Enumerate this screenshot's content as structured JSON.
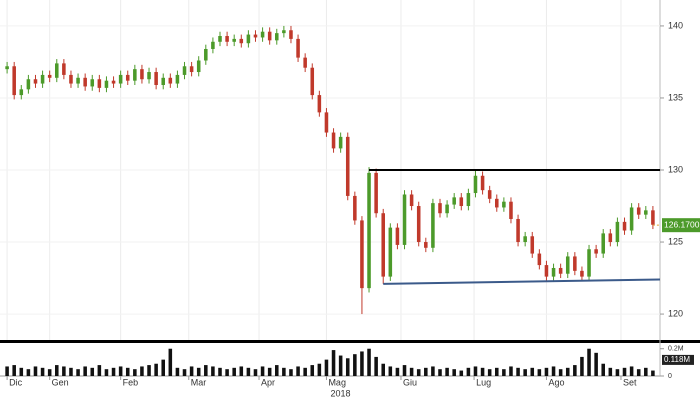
{
  "chart_data": {
    "type": "candlestick",
    "up_color": "#4c9a2a",
    "down_color": "#c0392b",
    "volume_color": "#111111",
    "grid": true,
    "xlim": [
      -1,
      92
    ],
    "ylim": [
      118.2,
      141.8
    ],
    "yticks": [
      120,
      125,
      130,
      135,
      140
    ],
    "xticks": [
      {
        "value": 0,
        "label": "Dic"
      },
      {
        "value": 6,
        "label": "Gen"
      },
      {
        "value": 16,
        "label": "Feb"
      },
      {
        "value": 25.6,
        "label": "Mar"
      },
      {
        "value": 35.5,
        "label": "Apr"
      },
      {
        "value": 45,
        "label": "Mag"
      },
      {
        "value": 55.5,
        "label": "Giu"
      },
      {
        "value": 65.8,
        "label": "Lug"
      },
      {
        "value": 76,
        "label": "Ago"
      },
      {
        "value": 86.5,
        "label": "Set"
      }
    ],
    "year_label": {
      "value": 45,
      "label": "2018"
    },
    "last_price": {
      "value": 126.17,
      "label": "126.1700"
    },
    "vlim": [
      0,
      0.22
    ],
    "vticks": [
      {
        "value": 0.2,
        "label": "0.2M"
      },
      0
    ],
    "volume_average": {
      "value": 0.118,
      "label": "0.118M"
    },
    "trend_lines": [
      {
        "color": "#000000",
        "points": [
          [
            51,
            130
          ],
          [
            92,
            130
          ]
        ]
      },
      {
        "color": "#3b5a8a",
        "points": [
          [
            53,
            122.1
          ],
          [
            92,
            122.4
          ]
        ]
      }
    ],
    "ohlc": [
      [
        137.0,
        137.5,
        136.7,
        137.2
      ],
      [
        137.2,
        137.5,
        134.9,
        135.2
      ],
      [
        135.2,
        135.9,
        134.9,
        135.6
      ],
      [
        135.6,
        136.6,
        135.3,
        136.3
      ],
      [
        136.3,
        136.6,
        135.7,
        136.0
      ],
      [
        136.0,
        136.9,
        135.7,
        136.6
      ],
      [
        136.6,
        136.9,
        136.1,
        136.4
      ],
      [
        136.4,
        137.7,
        136.1,
        137.4
      ],
      [
        137.4,
        137.7,
        136.3,
        136.6
      ],
      [
        136.6,
        136.9,
        135.7,
        136.0
      ],
      [
        136.0,
        136.7,
        135.7,
        136.4
      ],
      [
        136.4,
        136.7,
        135.5,
        135.8
      ],
      [
        135.8,
        136.6,
        135.5,
        136.3
      ],
      [
        136.3,
        136.6,
        135.4,
        135.7
      ],
      [
        135.7,
        136.5,
        135.4,
        136.2
      ],
      [
        136.2,
        136.5,
        135.7,
        136.0
      ],
      [
        136.0,
        136.9,
        135.7,
        136.6
      ],
      [
        136.6,
        136.9,
        135.9,
        136.2
      ],
      [
        136.2,
        137.3,
        135.9,
        137.0
      ],
      [
        137.0,
        137.3,
        136.0,
        136.3
      ],
      [
        136.3,
        137.1,
        136.0,
        136.8
      ],
      [
        136.8,
        137.1,
        135.6,
        135.9
      ],
      [
        135.9,
        136.7,
        135.6,
        136.4
      ],
      [
        136.4,
        136.7,
        135.7,
        136.0
      ],
      [
        136.0,
        136.9,
        135.7,
        136.6
      ],
      [
        136.6,
        137.5,
        136.3,
        137.2
      ],
      [
        137.2,
        137.5,
        136.5,
        136.8
      ],
      [
        136.8,
        137.9,
        136.5,
        137.6
      ],
      [
        137.6,
        138.7,
        137.3,
        138.4
      ],
      [
        138.4,
        139.2,
        138.1,
        138.9
      ],
      [
        138.9,
        139.6,
        138.6,
        139.3
      ],
      [
        139.3,
        139.6,
        138.6,
        138.9
      ],
      [
        138.9,
        139.4,
        138.6,
        139.1
      ],
      [
        139.1,
        139.4,
        138.5,
        138.8
      ],
      [
        138.8,
        139.7,
        138.5,
        139.4
      ],
      [
        139.4,
        139.7,
        138.9,
        139.2
      ],
      [
        139.2,
        139.9,
        138.9,
        139.6
      ],
      [
        139.6,
        139.9,
        138.7,
        139.0
      ],
      [
        139.0,
        139.8,
        138.7,
        139.5
      ],
      [
        139.5,
        140.0,
        139.2,
        139.7
      ],
      [
        139.7,
        140.0,
        138.8,
        139.1
      ],
      [
        139.1,
        139.4,
        137.5,
        137.8
      ],
      [
        137.8,
        138.1,
        136.8,
        137.1
      ],
      [
        137.1,
        137.4,
        134.9,
        135.2
      ],
      [
        135.2,
        135.5,
        133.7,
        134.0
      ],
      [
        134.0,
        134.3,
        132.3,
        132.6
      ],
      [
        132.6,
        132.9,
        131.2,
        131.5
      ],
      [
        131.5,
        132.6,
        131.2,
        132.3
      ],
      [
        132.3,
        132.6,
        127.9,
        128.2
      ],
      [
        128.2,
        128.5,
        126.2,
        126.5
      ],
      [
        126.5,
        126.8,
        120.0,
        121.8
      ],
      [
        121.8,
        130.2,
        121.5,
        129.8
      ],
      [
        129.8,
        130.1,
        126.7,
        127.0
      ],
      [
        127.0,
        127.3,
        122.1,
        122.6
      ],
      [
        122.6,
        126.3,
        122.3,
        126.0
      ],
      [
        126.0,
        126.3,
        124.5,
        124.8
      ],
      [
        124.8,
        128.6,
        124.5,
        128.3
      ],
      [
        128.3,
        128.6,
        127.2,
        127.5
      ],
      [
        127.5,
        127.8,
        124.7,
        125.0
      ],
      [
        125.0,
        125.3,
        124.3,
        124.6
      ],
      [
        124.6,
        128.0,
        124.3,
        127.7
      ],
      [
        127.7,
        128.0,
        126.7,
        127.0
      ],
      [
        127.0,
        127.9,
        126.7,
        127.6
      ],
      [
        127.6,
        128.4,
        127.3,
        128.1
      ],
      [
        128.1,
        128.4,
        127.2,
        127.5
      ],
      [
        127.5,
        128.7,
        127.2,
        128.4
      ],
      [
        128.4,
        130.0,
        128.1,
        129.6
      ],
      [
        129.6,
        129.9,
        128.3,
        128.6
      ],
      [
        128.6,
        128.9,
        127.7,
        128.0
      ],
      [
        128.0,
        128.3,
        127.1,
        127.4
      ],
      [
        127.4,
        128.1,
        127.1,
        127.8
      ],
      [
        127.8,
        128.1,
        126.3,
        126.6
      ],
      [
        126.6,
        126.9,
        124.7,
        125.0
      ],
      [
        125.0,
        125.7,
        124.7,
        125.4
      ],
      [
        125.4,
        125.7,
        123.9,
        124.2
      ],
      [
        124.2,
        124.5,
        123.1,
        123.4
      ],
      [
        123.4,
        123.7,
        122.3,
        122.6
      ],
      [
        122.6,
        123.5,
        122.3,
        123.2
      ],
      [
        123.2,
        123.5,
        122.5,
        122.8
      ],
      [
        122.8,
        124.3,
        122.5,
        124.0
      ],
      [
        124.0,
        124.3,
        122.7,
        123.0
      ],
      [
        123.0,
        123.3,
        122.3,
        122.6
      ],
      [
        122.6,
        124.8,
        122.3,
        124.5
      ],
      [
        124.5,
        124.8,
        123.9,
        124.2
      ],
      [
        124.2,
        125.9,
        123.9,
        125.6
      ],
      [
        125.6,
        125.9,
        124.7,
        125.0
      ],
      [
        125.0,
        126.7,
        124.7,
        126.4
      ],
      [
        126.4,
        126.7,
        125.5,
        125.8
      ],
      [
        125.8,
        127.7,
        125.5,
        127.4
      ],
      [
        127.4,
        127.7,
        126.6,
        126.9
      ],
      [
        126.9,
        127.5,
        126.6,
        127.2
      ],
      [
        127.2,
        127.5,
        125.9,
        126.2
      ]
    ],
    "volume": [
      0.07,
      0.08,
      0.06,
      0.05,
      0.07,
      0.06,
      0.05,
      0.08,
      0.07,
      0.06,
      0.05,
      0.07,
      0.06,
      0.08,
      0.05,
      0.06,
      0.07,
      0.06,
      0.05,
      0.07,
      0.08,
      0.09,
      0.12,
      0.2,
      0.06,
      0.05,
      0.07,
      0.06,
      0.08,
      0.07,
      0.06,
      0.05,
      0.06,
      0.07,
      0.06,
      0.05,
      0.07,
      0.06,
      0.08,
      0.06,
      0.05,
      0.07,
      0.06,
      0.08,
      0.09,
      0.12,
      0.19,
      0.15,
      0.13,
      0.16,
      0.18,
      0.2,
      0.14,
      0.09,
      0.07,
      0.06,
      0.08,
      0.06,
      0.05,
      0.06,
      0.07,
      0.05,
      0.06,
      0.05,
      0.04,
      0.06,
      0.07,
      0.06,
      0.05,
      0.06,
      0.05,
      0.07,
      0.06,
      0.05,
      0.06,
      0.05,
      0.06,
      0.07,
      0.05,
      0.06,
      0.08,
      0.14,
      0.2,
      0.17,
      0.09,
      0.06,
      0.05,
      0.06,
      0.07,
      0.05,
      0.06,
      0.04
    ]
  }
}
